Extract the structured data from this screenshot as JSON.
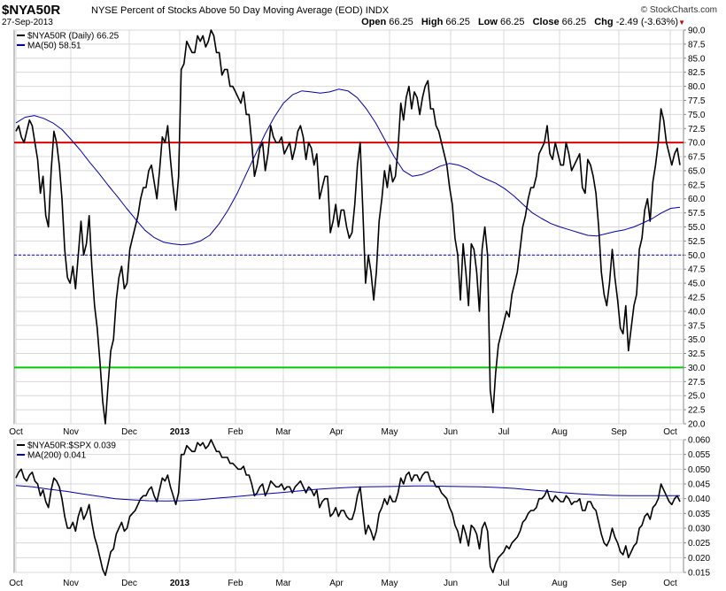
{
  "header": {
    "symbol": "$NYA50R",
    "description": "NYSE Percent of Stocks Above 50 Day Moving Average (EOD)",
    "exchange": "INDX",
    "date": "27-Sep-2013",
    "brand": "© StockCharts.com",
    "open_label": "Open",
    "open_value": "66.25",
    "high_label": "High",
    "high_value": "66.25",
    "low_label": "Low",
    "low_value": "66.25",
    "close_label": "Close",
    "close_value": "66.25",
    "chg_label": "Chg",
    "chg_value": "-2.49 (-3.63%)"
  },
  "months": [
    "Oct",
    "Nov",
    "Dec",
    "2013",
    "Feb",
    "Mar",
    "Apr",
    "May",
    "Jun",
    "Jul",
    "Aug",
    "Sep",
    "Oct"
  ],
  "chart_data": [
    {
      "type": "line",
      "ylim": [
        20,
        90
      ],
      "yticks": [
        "20.0",
        "22.5",
        "25.0",
        "27.5",
        "30.0",
        "32.5",
        "35.0",
        "37.5",
        "40.0",
        "42.5",
        "45.0",
        "47.5",
        "50.0",
        "52.5",
        "55.0",
        "57.5",
        "60.0",
        "62.5",
        "65.0",
        "67.5",
        "70.0",
        "72.5",
        "75.0",
        "77.5",
        "80.0",
        "82.5",
        "85.0",
        "87.5",
        "90.0"
      ],
      "legend": [
        {
          "label": "$NYA50R (Daily) 66.25",
          "color": "#000000"
        },
        {
          "label": "MA(50) 58.51",
          "color": "#0000a0"
        }
      ],
      "reference_lines": [
        {
          "value": 70,
          "color": "#e00000",
          "style": "solid"
        },
        {
          "value": 50,
          "color": "#0000cc",
          "style": "dashed"
        },
        {
          "value": 30,
          "color": "#00cc00",
          "style": "solid"
        }
      ],
      "series": [
        {
          "name": "$NYA50R (Daily)",
          "color": "#000000",
          "values": [
            72,
            73,
            71,
            70,
            72,
            74,
            73,
            70,
            67,
            61,
            64,
            57,
            55,
            65,
            72,
            70,
            66,
            60,
            51,
            46,
            45,
            48,
            44,
            50,
            56,
            50,
            52,
            57,
            48,
            41,
            37,
            31,
            24,
            20,
            27,
            33,
            35,
            42,
            46,
            48,
            44,
            45,
            51,
            53,
            55,
            57,
            60,
            62,
            62,
            65,
            66,
            63,
            60,
            65,
            71,
            70,
            73,
            67,
            62,
            58,
            64,
            83,
            84,
            88,
            87,
            86,
            86,
            89,
            88,
            89,
            87,
            88,
            90,
            89,
            86,
            86,
            82,
            83,
            83,
            80,
            80,
            79,
            78,
            77,
            79,
            75,
            75,
            70,
            64,
            66,
            69,
            70,
            65,
            68,
            73,
            71,
            70,
            70,
            71,
            68,
            69,
            70,
            67,
            69,
            72,
            73,
            71,
            67,
            70,
            69,
            66,
            68,
            60,
            62,
            64,
            64,
            54,
            56,
            59,
            55,
            58,
            58,
            55,
            53,
            54,
            59,
            66,
            70,
            58,
            45,
            50,
            47,
            42,
            47,
            56,
            60,
            65,
            62,
            66,
            63,
            64,
            69,
            77,
            74,
            78,
            80,
            76,
            79,
            78,
            75,
            78,
            80,
            81,
            76,
            76,
            73,
            72,
            70,
            68,
            66,
            62,
            59,
            53,
            50,
            42,
            52,
            47,
            41,
            52,
            51,
            47,
            40,
            51,
            55,
            50,
            26,
            22,
            29,
            34,
            36,
            38,
            40,
            39,
            43,
            45,
            47,
            51,
            55,
            57,
            60,
            62,
            62,
            64,
            68,
            69,
            70,
            73,
            68,
            67,
            70,
            68,
            66,
            66,
            70,
            68,
            65,
            66,
            67,
            68,
            62,
            61,
            67,
            66,
            64,
            61,
            55,
            47,
            43,
            41,
            45,
            51,
            46,
            42,
            37,
            36,
            41,
            33,
            37,
            41,
            43,
            51,
            53,
            58,
            60,
            56,
            63,
            66,
            70,
            76,
            74,
            70,
            68,
            66,
            68,
            69,
            66
          ],
          "last": 66.25
        },
        {
          "name": "MA(50)",
          "color": "#0000a0",
          "values": [
            73.5,
            74.5,
            74.8,
            74.3,
            73.5,
            72.3,
            70.5,
            68.6,
            66.5,
            64.5,
            62.4,
            60.4,
            58.3,
            56.3,
            54.4,
            53.1,
            52.3,
            52.0,
            51.8,
            52.0,
            52.5,
            53.5,
            55.5,
            58.0,
            61.0,
            64.5,
            68.0,
            71.5,
            74.5,
            77.0,
            78.5,
            79.2,
            79.0,
            78.8,
            79.0,
            79.5,
            79.2,
            78.0,
            76.0,
            73.5,
            70.5,
            67.5,
            65.0,
            64.0,
            64.3,
            65.0,
            65.8,
            66.3,
            66.0,
            65.3,
            64.3,
            63.5,
            62.8,
            61.8,
            60.5,
            59.0,
            57.5,
            56.5,
            55.6,
            55.0,
            54.5,
            54.0,
            53.5,
            53.4,
            53.8,
            54.2,
            54.5,
            55.0,
            55.7,
            56.5,
            57.5,
            58.3,
            58.51
          ]
        }
      ]
    },
    {
      "type": "line",
      "ylim": [
        0.015,
        0.06
      ],
      "yticks": [
        "0.015",
        "0.020",
        "0.025",
        "0.030",
        "0.035",
        "0.040",
        "0.045",
        "0.050",
        "0.055",
        "0.060"
      ],
      "legend": [
        {
          "label": "$NYA50R:$SPX 0.039",
          "color": "#000000"
        },
        {
          "label": "MA(200) 0.041",
          "color": "#0000a0"
        }
      ],
      "series": [
        {
          "name": "$NYA50R:$SPX",
          "color": "#000000",
          "values": [
            0.047,
            0.049,
            0.05,
            0.047,
            0.046,
            0.048,
            0.049,
            0.046,
            0.045,
            0.041,
            0.043,
            0.039,
            0.037,
            0.043,
            0.047,
            0.046,
            0.044,
            0.04,
            0.034,
            0.03,
            0.03,
            0.032,
            0.029,
            0.034,
            0.037,
            0.033,
            0.035,
            0.038,
            0.032,
            0.027,
            0.024,
            0.02,
            0.016,
            0.014,
            0.018,
            0.022,
            0.023,
            0.028,
            0.03,
            0.032,
            0.029,
            0.03,
            0.034,
            0.035,
            0.036,
            0.038,
            0.04,
            0.041,
            0.041,
            0.043,
            0.044,
            0.041,
            0.039,
            0.043,
            0.047,
            0.046,
            0.048,
            0.044,
            0.041,
            0.038,
            0.042,
            0.055,
            0.055,
            0.058,
            0.057,
            0.056,
            0.056,
            0.059,
            0.058,
            0.059,
            0.057,
            0.058,
            0.06,
            0.058,
            0.056,
            0.056,
            0.054,
            0.054,
            0.054,
            0.052,
            0.052,
            0.051,
            0.05,
            0.05,
            0.051,
            0.048,
            0.048,
            0.045,
            0.041,
            0.042,
            0.044,
            0.045,
            0.041,
            0.043,
            0.046,
            0.045,
            0.044,
            0.044,
            0.045,
            0.043,
            0.044,
            0.044,
            0.042,
            0.044,
            0.045,
            0.046,
            0.044,
            0.042,
            0.044,
            0.043,
            0.041,
            0.043,
            0.037,
            0.039,
            0.04,
            0.04,
            0.034,
            0.035,
            0.037,
            0.034,
            0.036,
            0.036,
            0.034,
            0.033,
            0.033,
            0.036,
            0.041,
            0.044,
            0.036,
            0.028,
            0.031,
            0.029,
            0.026,
            0.029,
            0.035,
            0.037,
            0.04,
            0.038,
            0.041,
            0.039,
            0.039,
            0.042,
            0.047,
            0.045,
            0.048,
            0.049,
            0.046,
            0.048,
            0.048,
            0.046,
            0.048,
            0.049,
            0.049,
            0.046,
            0.046,
            0.044,
            0.044,
            0.042,
            0.041,
            0.04,
            0.037,
            0.035,
            0.031,
            0.029,
            0.025,
            0.031,
            0.028,
            0.024,
            0.031,
            0.03,
            0.028,
            0.023,
            0.03,
            0.032,
            0.029,
            0.017,
            0.015,
            0.018,
            0.02,
            0.021,
            0.022,
            0.024,
            0.023,
            0.025,
            0.026,
            0.027,
            0.029,
            0.032,
            0.033,
            0.035,
            0.036,
            0.036,
            0.037,
            0.04,
            0.04,
            0.041,
            0.043,
            0.04,
            0.039,
            0.041,
            0.04,
            0.039,
            0.039,
            0.041,
            0.04,
            0.038,
            0.039,
            0.039,
            0.04,
            0.036,
            0.036,
            0.039,
            0.039,
            0.037,
            0.036,
            0.032,
            0.028,
            0.025,
            0.024,
            0.026,
            0.03,
            0.027,
            0.025,
            0.022,
            0.021,
            0.024,
            0.02,
            0.022,
            0.024,
            0.025,
            0.03,
            0.031,
            0.034,
            0.035,
            0.033,
            0.037,
            0.038,
            0.04,
            0.045,
            0.043,
            0.041,
            0.039,
            0.038,
            0.04,
            0.041,
            0.039
          ],
          "last": 0.039
        },
        {
          "name": "MA(200)",
          "color": "#0000a0",
          "values": [
            0.0445,
            0.044,
            0.0432,
            0.0425,
            0.0416,
            0.0408,
            0.04,
            0.0396,
            0.0393,
            0.0392,
            0.0393,
            0.0396,
            0.0401,
            0.0406,
            0.0411,
            0.0416,
            0.0421,
            0.0426,
            0.0431,
            0.0435,
            0.0438,
            0.044,
            0.0441,
            0.0442,
            0.0443,
            0.0443,
            0.0442,
            0.0441,
            0.044,
            0.0438,
            0.0435,
            0.043,
            0.0425,
            0.042,
            0.0416,
            0.0413,
            0.0411,
            0.041,
            0.041,
            0.041,
            0.041
          ]
        }
      ]
    }
  ]
}
